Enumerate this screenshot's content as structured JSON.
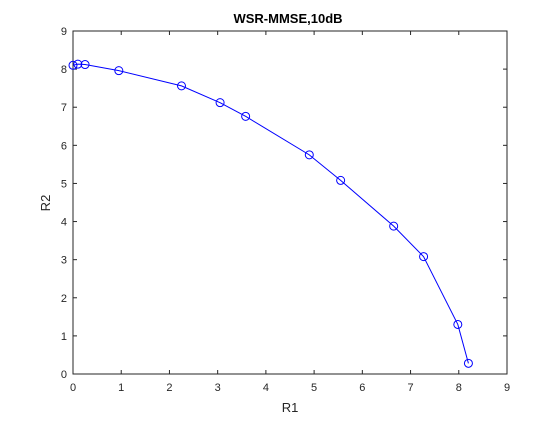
{
  "chart_data": {
    "type": "line",
    "title": "WSR-MMSE,10dB",
    "xlabel": "R1",
    "ylabel": "R2",
    "xlim": [
      0,
      9
    ],
    "ylim": [
      0,
      9
    ],
    "xticks": [
      0,
      1,
      2,
      3,
      4,
      5,
      6,
      7,
      8,
      9
    ],
    "yticks": [
      0,
      1,
      2,
      3,
      4,
      5,
      6,
      7,
      8,
      9
    ],
    "grid": false,
    "series": [
      {
        "color": "#0000ff",
        "marker": "circle",
        "points": [
          [
            0.0,
            8.1
          ],
          [
            0.1,
            8.13
          ],
          [
            0.25,
            8.12
          ],
          [
            0.95,
            7.96
          ],
          [
            2.25,
            7.56
          ],
          [
            3.05,
            7.12
          ],
          [
            3.58,
            6.76
          ],
          [
            4.9,
            5.75
          ],
          [
            5.55,
            5.08
          ],
          [
            6.65,
            3.88
          ],
          [
            7.27,
            3.08
          ],
          [
            7.98,
            1.3
          ],
          [
            8.2,
            0.28
          ]
        ]
      }
    ]
  }
}
